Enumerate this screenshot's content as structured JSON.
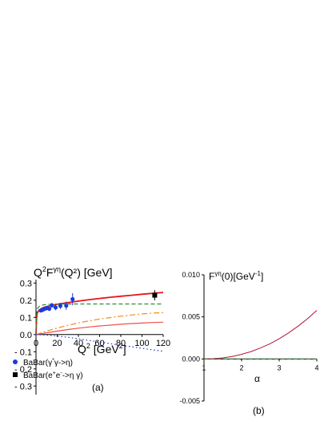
{
  "figure": {
    "panel_a_caption": "(a)",
    "panel_b_caption": "(b)"
  },
  "chart_data": [
    {
      "type": "line",
      "panel": "(a)",
      "title": "Q²Fγη(Q²) [GeV]",
      "title_parts": {
        "prefix": "Q",
        "sup1": "2",
        "mid": "F",
        "sup2": "γη",
        "suffix": "(Q²) [GeV]"
      },
      "xlabel": "Q² [GeV²]",
      "xlabel_parts": {
        "prefix": "Q",
        "sup1": "2",
        "mid": " [GeV",
        "sup2": "2",
        "suffix": "]"
      },
      "ylabel": "",
      "xlim": [
        0,
        120
      ],
      "ylim": [
        -0.35,
        0.32
      ],
      "x_ticks": [
        0,
        20,
        40,
        60,
        80,
        100,
        120
      ],
      "y_ticks": [
        0.3,
        0.2,
        0.1,
        0.0,
        -0.1,
        -0.2,
        -0.3
      ],
      "y_tick_labels": [
        "0.3",
        "0.2",
        "0.1",
        "0.0",
        "- 0.1",
        "- 0.2",
        "- 0.3"
      ],
      "series": [
        {
          "style": "solid",
          "color": "#e4161c",
          "x": [
            0,
            0.5,
            1,
            2,
            3,
            4,
            5,
            7,
            10,
            15,
            20,
            30,
            40,
            50,
            60,
            70,
            80,
            90,
            100,
            110,
            120
          ],
          "y": [
            0,
            0.09,
            0.12,
            0.135,
            0.142,
            0.147,
            0.151,
            0.157,
            0.163,
            0.17,
            0.176,
            0.186,
            0.195,
            0.203,
            0.21,
            0.217,
            0.223,
            0.229,
            0.235,
            0.24,
            0.245
          ]
        },
        {
          "style": "dashed",
          "color": "#2e8b2e",
          "x": [
            0,
            0.5,
            1,
            2,
            4,
            7,
            10,
            15,
            20,
            30,
            40,
            60,
            80,
            100,
            120
          ],
          "y": [
            0,
            0.11,
            0.14,
            0.158,
            0.168,
            0.173,
            0.175,
            0.177,
            0.178,
            0.178,
            0.178,
            0.178,
            0.178,
            0.178,
            0.178
          ]
        },
        {
          "style": "dash-dot",
          "color": "#f08c1a",
          "x": [
            0,
            5,
            10,
            20,
            30,
            40,
            50,
            60,
            70,
            80,
            90,
            100,
            110,
            120
          ],
          "y": [
            0,
            0.01,
            0.02,
            0.038,
            0.054,
            0.068,
            0.08,
            0.09,
            0.099,
            0.107,
            0.114,
            0.12,
            0.125,
            0.128
          ]
        },
        {
          "style": "solid",
          "color": "#f0504a",
          "x": [
            0,
            5,
            10,
            20,
            30,
            40,
            50,
            60,
            70,
            80,
            90,
            100,
            110,
            120
          ],
          "y": [
            0,
            0.005,
            0.01,
            0.02,
            0.029,
            0.037,
            0.044,
            0.05,
            0.055,
            0.06,
            0.064,
            0.067,
            0.07,
            0.072
          ]
        },
        {
          "style": "dotted",
          "color": "#2233cc",
          "x": [
            0,
            10,
            20,
            30,
            40,
            50,
            60,
            70,
            80,
            90,
            100,
            110,
            120
          ],
          "y": [
            0,
            -0.003,
            -0.009,
            -0.016,
            -0.025,
            -0.034,
            -0.043,
            -0.053,
            -0.062,
            -0.071,
            -0.08,
            -0.089,
            -0.097
          ]
        },
        {
          "style": "markers",
          "marker": "circle",
          "color": "#1a3be0",
          "name": "BaBar(γ*γ->η)",
          "x": [
            4.5,
            6.0,
            7.5,
            9.0,
            10.5,
            12.5,
            15.0,
            18.5,
            23.0,
            28.5,
            34.5
          ],
          "y": [
            0.14,
            0.143,
            0.148,
            0.152,
            0.155,
            0.15,
            0.17,
            0.158,
            0.167,
            0.168,
            0.206
          ],
          "err": [
            0.008,
            0.007,
            0.007,
            0.008,
            0.009,
            0.009,
            0.014,
            0.016,
            0.018,
            0.024,
            0.035
          ]
        },
        {
          "style": "markers",
          "marker": "square",
          "color": "#000000",
          "name": "BaBar(e⁺e⁻->η γ)",
          "x": [
            112
          ],
          "y": [
            0.229
          ],
          "err": [
            0.03
          ]
        }
      ],
      "legend": [
        {
          "marker": "circle",
          "color": "#1a3be0",
          "label": "BaBar(γ*γ->η)",
          "parts": {
            "a": "BaBar(γ",
            "sup": "*",
            "b": "γ->η)"
          }
        },
        {
          "marker": "square",
          "color": "#000000",
          "label": "BaBar(e⁺e⁻->η γ)",
          "parts": {
            "a": "BaBar(e",
            "sup1": "+",
            "b": "e",
            "sup2": "-",
            "c": "->η γ)"
          }
        }
      ],
      "legend_position": "below plot"
    },
    {
      "type": "line",
      "panel": "(b)",
      "title": "Fγη(0)[GeV⁻¹]",
      "title_parts": {
        "prefix": "F",
        "sup1": "γη",
        "mid": "(0)[GeV",
        "sup2": "-1",
        "suffix": "]"
      },
      "xlabel": "α",
      "ylabel": "",
      "xlim": [
        1,
        4
      ],
      "ylim": [
        -0.005,
        0.01
      ],
      "x_ticks": [
        1,
        2,
        3,
        4
      ],
      "y_ticks": [
        0.01,
        0.005,
        0.0,
        -0.005
      ],
      "y_tick_labels": [
        "0.010",
        "0.005",
        "0.000",
        "-0.005"
      ],
      "series": [
        {
          "style": "solid",
          "color": "#b0173a",
          "x": [
            1.0,
            1.25,
            1.5,
            1.75,
            2.0,
            2.25,
            2.5,
            2.75,
            3.0,
            3.25,
            3.5,
            3.75,
            4.0
          ],
          "y": [
            0.0,
            3e-05,
            0.00013,
            0.0003,
            0.00055,
            0.00088,
            0.0013,
            0.0018,
            0.0024,
            0.0031,
            0.0039,
            0.00478,
            0.00578
          ]
        },
        {
          "style": "dashed",
          "color": "#2e8b2e",
          "x": [
            1.0,
            4.0
          ],
          "y": [
            0.0,
            0.0
          ]
        }
      ]
    }
  ]
}
